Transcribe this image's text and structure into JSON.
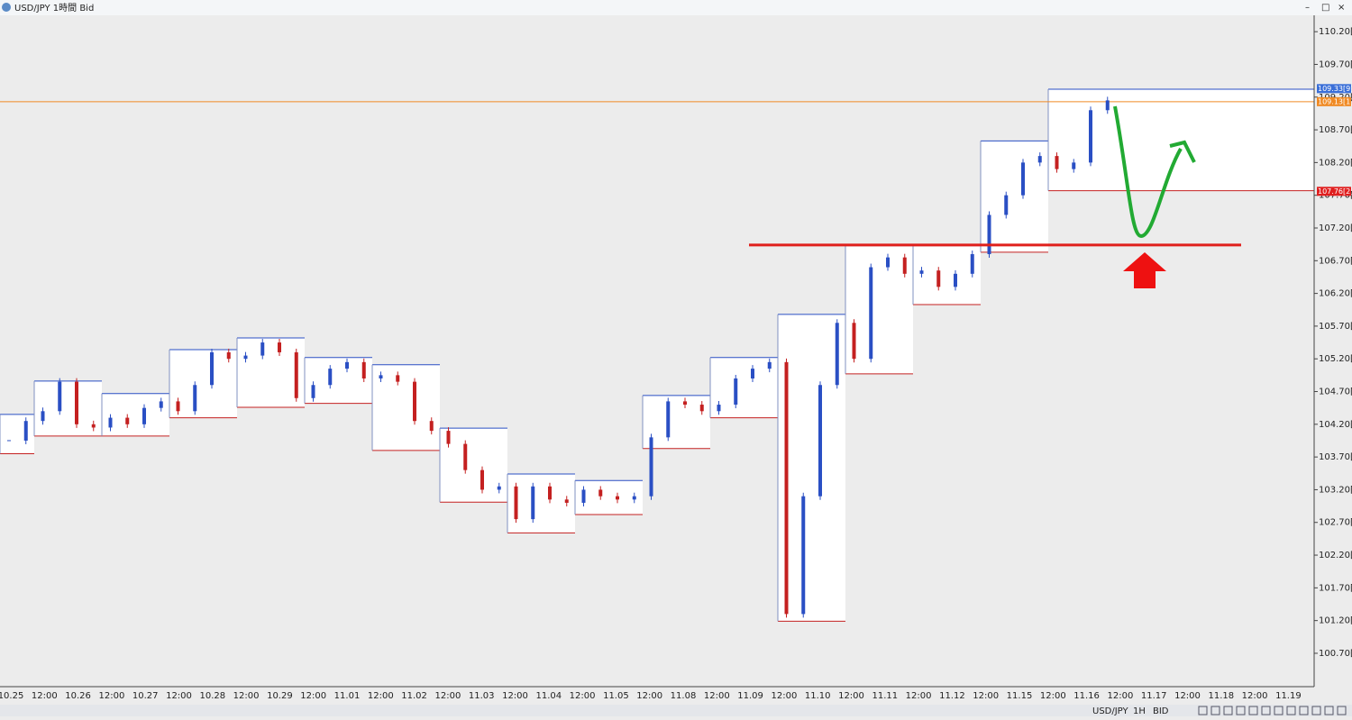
{
  "window": {
    "title": "USD/JPY 1時間 Bid"
  },
  "toolbar": {
    "symbol": "USD/JPY",
    "period": "1H",
    "side": "BID"
  },
  "chart_data": {
    "type": "candlestick",
    "ylim": [
      100.19,
      110.45
    ],
    "yticks": [
      {
        "value": 110.2,
        "label": "110.20[0"
      },
      {
        "value": 109.7,
        "label": "109.70[0"
      },
      {
        "value": 109.2,
        "label": "109.20[0"
      },
      {
        "value": 108.7,
        "label": "108.70[0"
      },
      {
        "value": 108.2,
        "label": "108.20[0"
      },
      {
        "value": 107.7,
        "label": "107.70[0"
      },
      {
        "value": 107.2,
        "label": "107.20[0"
      },
      {
        "value": 106.7,
        "label": "106.70[0"
      },
      {
        "value": 106.2,
        "label": "106.20[0"
      },
      {
        "value": 105.7,
        "label": "105.70[0"
      },
      {
        "value": 105.2,
        "label": "105.20[0"
      },
      {
        "value": 104.7,
        "label": "104.70[0"
      },
      {
        "value": 104.2,
        "label": "104.20[0"
      },
      {
        "value": 103.7,
        "label": "103.70[0"
      },
      {
        "value": 103.2,
        "label": "103.20[0"
      },
      {
        "value": 102.7,
        "label": "102.70[0"
      },
      {
        "value": 102.2,
        "label": "102.20[0"
      },
      {
        "value": 101.7,
        "label": "101.70[0"
      },
      {
        "value": 101.2,
        "label": "101.20[0"
      },
      {
        "value": 100.7,
        "label": "100.70[0"
      }
    ],
    "categories": [
      "10.25",
      "12:00",
      "10.26",
      "12:00",
      "10.27",
      "12:00",
      "10.28",
      "12:00",
      "10.29",
      "12:00",
      "11.01",
      "12:00",
      "11.02",
      "12:00",
      "11.03",
      "12:00",
      "11.04",
      "12:00",
      "11.05",
      "12:00",
      "11.08",
      "12:00",
      "11.09",
      "12:00",
      "11.10",
      "12:00",
      "11.11",
      "12:00",
      "11.12",
      "12:00",
      "11.15",
      "12:00",
      "11.16",
      "12:00",
      "11.17",
      "12:00",
      "11.18",
      "12:00",
      "11.19"
    ],
    "up_color": "#2a4fc4",
    "down_color": "#c42020",
    "prices": [
      103.95,
      104.25,
      104.4,
      104.85,
      104.2,
      104.15,
      104.3,
      104.2,
      104.45,
      104.55,
      104.4,
      104.8,
      105.3,
      105.2,
      105.25,
      105.45,
      105.3,
      104.6,
      104.8,
      105.05,
      105.15,
      104.9,
      104.95,
      104.85,
      104.25,
      104.1,
      103.9,
      103.5,
      103.2,
      103.25,
      102.75,
      103.25,
      103.05,
      103.0,
      103.2,
      103.1,
      103.05,
      103.1,
      104.0,
      104.55,
      104.5,
      104.4,
      104.5,
      104.9,
      105.05,
      105.15,
      101.3,
      103.1,
      104.8,
      105.75,
      105.2,
      106.6,
      106.75,
      106.5,
      106.55,
      106.3,
      106.5,
      106.8,
      107.4,
      107.7,
      108.2,
      108.3,
      108.1,
      108.2,
      109.0,
      109.15
    ],
    "daily_ranges": [
      {
        "high": 104.35,
        "low": 103.75
      },
      {
        "high": 104.86,
        "low": 104.02
      },
      {
        "high": 104.67,
        "low": 104.02
      },
      {
        "high": 105.34,
        "low": 104.3
      },
      {
        "high": 105.52,
        "low": 104.46
      },
      {
        "high": 105.22,
        "low": 104.52
      },
      {
        "high": 105.11,
        "low": 103.8
      },
      {
        "high": 104.14,
        "low": 103.01
      },
      {
        "high": 103.44,
        "low": 102.54
      },
      {
        "high": 103.34,
        "low": 102.82
      },
      {
        "high": 104.64,
        "low": 103.83
      },
      {
        "high": 105.22,
        "low": 104.3
      },
      {
        "high": 105.88,
        "low": 101.19
      },
      {
        "high": 106.93,
        "low": 104.97
      },
      {
        "high": 106.93,
        "low": 106.03
      },
      {
        "high": 108.53,
        "low": 106.83
      },
      {
        "high": 109.32,
        "low": 107.77
      }
    ],
    "support_line": {
      "value": 106.94,
      "color": "#e0201c"
    },
    "price_tags": [
      {
        "value": 109.33,
        "label": "109.33[9]",
        "color": "#3a6fd8"
      },
      {
        "value": 109.13,
        "label": "109.13[1]",
        "color": "#f08a24"
      },
      {
        "value": 107.76,
        "label": "107.76[2]",
        "color": "#e02020"
      }
    ]
  }
}
